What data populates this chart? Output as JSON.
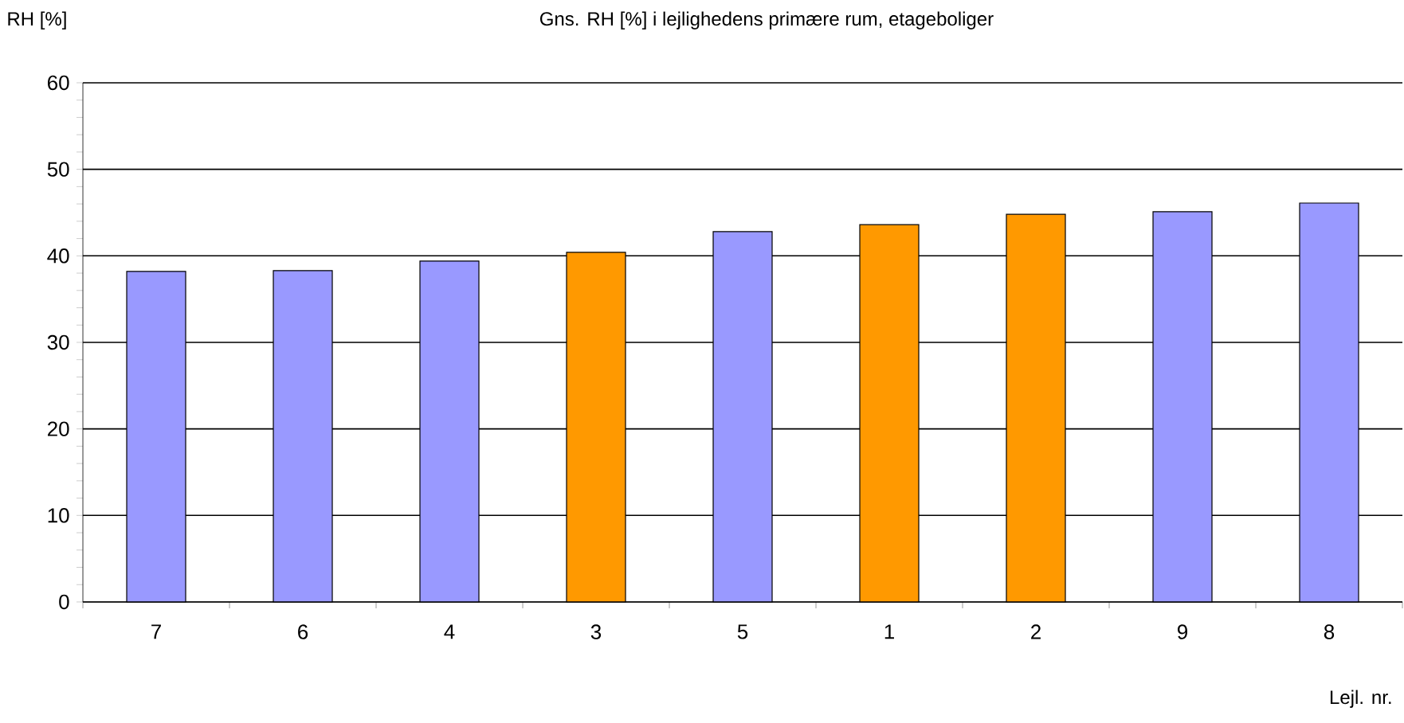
{
  "chart_data": {
    "type": "bar",
    "title": "Gns. RH [%] i lejlighedens primære rum, etageboliger",
    "ylabel": "RH [%]",
    "xlabel": "Lejl. nr.",
    "categories": [
      "7",
      "6",
      "4",
      "3",
      "5",
      "1",
      "2",
      "9",
      "8"
    ],
    "values": [
      38.2,
      38.3,
      39.4,
      40.4,
      42.8,
      43.6,
      44.8,
      45.1,
      46.1
    ],
    "colors": [
      "#9999ff",
      "#9999ff",
      "#9999ff",
      "#ff9900",
      "#9999ff",
      "#ff9900",
      "#ff9900",
      "#9999ff",
      "#9999ff"
    ],
    "ylim": [
      0,
      60
    ],
    "yticks": [
      0,
      10,
      20,
      30,
      40,
      50,
      60
    ],
    "grid": "y"
  }
}
